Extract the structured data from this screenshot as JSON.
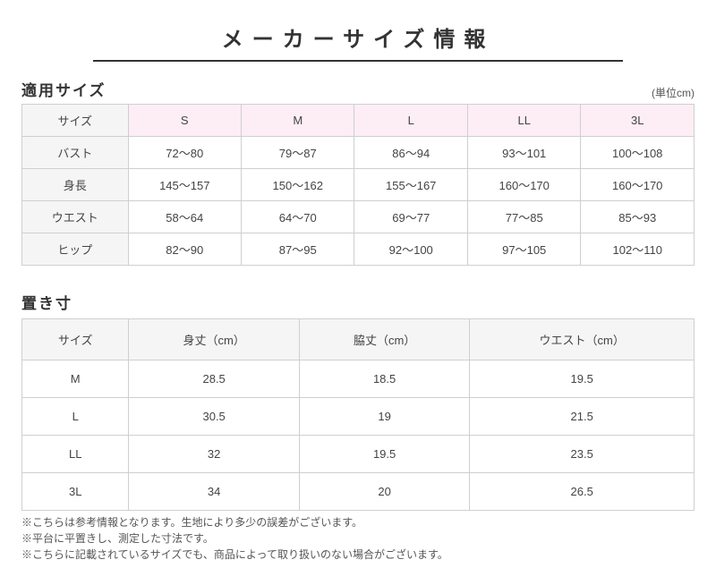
{
  "page_title": "メーカーサイズ情報",
  "applied": {
    "title": "適用サイズ",
    "unit": "(単位cm)",
    "col_label": "サイズ",
    "sizes": [
      "S",
      "M",
      "L",
      "LL",
      "3L"
    ],
    "rows": [
      {
        "label": "バスト",
        "v": [
          "72〜80",
          "79〜87",
          "86〜94",
          "93〜101",
          "100〜108"
        ]
      },
      {
        "label": "身長",
        "v": [
          "145〜157",
          "150〜162",
          "155〜167",
          "160〜170",
          "160〜170"
        ]
      },
      {
        "label": "ウエスト",
        "v": [
          "58〜64",
          "64〜70",
          "69〜77",
          "77〜85",
          "85〜93"
        ]
      },
      {
        "label": "ヒップ",
        "v": [
          "82〜90",
          "87〜95",
          "92〜100",
          "97〜105",
          "102〜110"
        ]
      }
    ],
    "header_bg_label": "#f5f5f5",
    "header_bg_size": "#fceef4"
  },
  "okisun": {
    "title": "置き寸",
    "columns": [
      "サイズ",
      "身丈（cm）",
      "脇丈（cm）",
      "ウエスト（cm）"
    ],
    "rows": [
      {
        "v": [
          "M",
          "28.5",
          "18.5",
          "19.5"
        ]
      },
      {
        "v": [
          "L",
          "30.5",
          "19",
          "21.5"
        ]
      },
      {
        "v": [
          "LL",
          "32",
          "19.5",
          "23.5"
        ]
      },
      {
        "v": [
          "3L",
          "34",
          "20",
          "26.5"
        ]
      }
    ]
  },
  "notes": [
    "※こちらは参考情報となります。生地により多少の誤差がございます。",
    "※平台に平置きし、測定した寸法です。",
    "※こちらに記載されているサイズでも、商品によって取り扱いのない場合がございます。"
  ],
  "style": {
    "border_color": "#cfcfcf",
    "text_color": "#444444",
    "title_underline": "#333333"
  }
}
